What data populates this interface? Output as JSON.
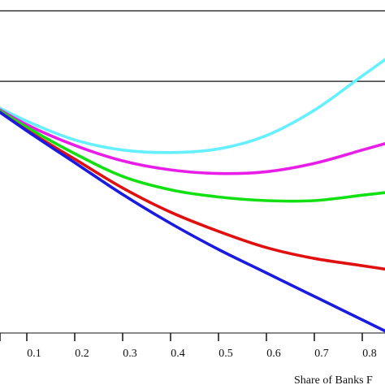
{
  "chart_data": {
    "type": "line",
    "xlabel": "Share of Banks F",
    "x_ticks": [
      "0.1",
      "0.2",
      "0.3",
      "0.4",
      "0.5",
      "0.6",
      "0.7",
      "0.8"
    ],
    "xlim": [
      0.0,
      0.8
    ],
    "ylim": [
      0.0,
      1.0
    ],
    "grid": false,
    "reference_lines": [
      0.97,
      0.775
    ],
    "series": [
      {
        "color": "#66f0ff",
        "x": [
          0.0,
          0.1,
          0.2,
          0.3,
          0.4,
          0.5,
          0.6,
          0.7,
          0.8
        ],
        "y": [
          0.73,
          0.665,
          0.613,
          0.585,
          0.578,
          0.588,
          0.625,
          0.695,
          0.79
        ]
      },
      {
        "color": "#e81ee8",
        "x": [
          0.0,
          0.1,
          0.2,
          0.3,
          0.4,
          0.5,
          0.6,
          0.7,
          0.8
        ],
        "y": [
          0.73,
          0.655,
          0.598,
          0.555,
          0.53,
          0.52,
          0.525,
          0.548,
          0.585
        ]
      },
      {
        "color": "#12e012",
        "x": [
          0.0,
          0.1,
          0.2,
          0.3,
          0.4,
          0.5,
          0.6,
          0.7,
          0.8
        ],
        "y": [
          0.73,
          0.648,
          0.575,
          0.512,
          0.475,
          0.455,
          0.445,
          0.445,
          0.46
        ]
      },
      {
        "color": "#e01010",
        "x": [
          0.0,
          0.1,
          0.2,
          0.3,
          0.4,
          0.5,
          0.6,
          0.7,
          0.8
        ],
        "y": [
          0.73,
          0.64,
          0.56,
          0.48,
          0.413,
          0.36,
          0.315,
          0.285,
          0.265
        ]
      },
      {
        "color": "#1a1ae0",
        "x": [
          0.0,
          0.1,
          0.2,
          0.3,
          0.4,
          0.5,
          0.6,
          0.7,
          0.8
        ],
        "y": [
          0.73,
          0.638,
          0.55,
          0.462,
          0.382,
          0.31,
          0.245,
          0.18,
          0.115
        ]
      }
    ]
  }
}
